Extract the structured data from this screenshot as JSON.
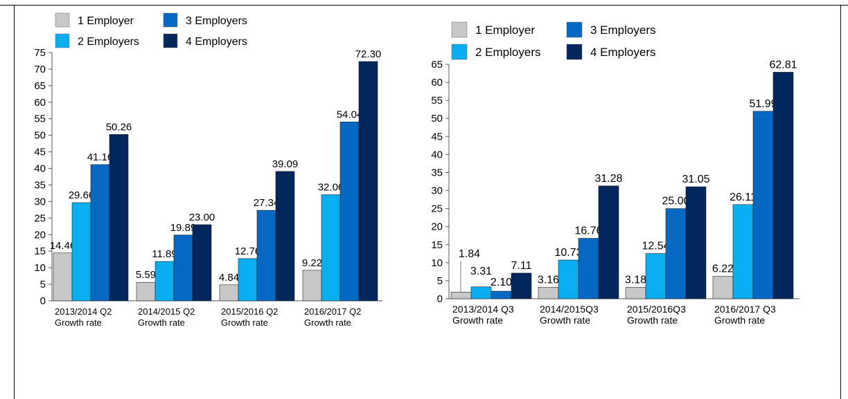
{
  "charts": {
    "colors": [
      "#c8c8c8",
      "#08aeef",
      "#0568c3",
      "#03265c"
    ],
    "legend_labels": [
      "1 Employer",
      "2 Employers",
      "3 Employers",
      "4 Employers"
    ]
  },
  "chart_data": [
    {
      "type": "bar",
      "categories": [
        [
          "2013/2014 Q2",
          "Growth rate"
        ],
        [
          "2014/2015 Q2",
          "Growth rate"
        ],
        [
          "2015/2016 Q2",
          "Growth rate"
        ],
        [
          "2016/2017 Q2",
          "Growth rate"
        ]
      ],
      "series": [
        {
          "name": "1 Employer",
          "values": [
            14.46,
            5.59,
            4.84,
            9.22
          ],
          "labels": [
            "14.46",
            "5.59",
            "4.84",
            "9.22"
          ]
        },
        {
          "name": "2 Employers",
          "values": [
            29.66,
            11.89,
            12.76,
            32.06
          ],
          "labels": [
            "29.66",
            "11.89",
            "12.76",
            "32.06"
          ]
        },
        {
          "name": "3 Employers",
          "values": [
            41.16,
            19.89,
            27.34,
            54.04
          ],
          "labels": [
            "41.16",
            "19.89",
            "27.34",
            "54.04"
          ]
        },
        {
          "name": "4 Employers",
          "values": [
            50.26,
            23.0,
            39.09,
            72.3
          ],
          "labels": [
            "50.26",
            "23.00",
            "39.09",
            "72.30"
          ]
        }
      ],
      "ylim": [
        0,
        75
      ],
      "yticks": [
        0,
        5,
        10,
        15,
        20,
        25,
        30,
        35,
        40,
        45,
        50,
        55,
        60,
        65,
        70,
        75
      ],
      "legend": "top-left"
    },
    {
      "type": "bar",
      "categories": [
        [
          "2013/2014 Q3",
          "Growth rate"
        ],
        [
          "2014/2015Q3",
          "Growth rate"
        ],
        [
          "2015/2016Q3",
          "Growth rate"
        ],
        [
          "2016/2017 Q3",
          "Growth rate"
        ]
      ],
      "series": [
        {
          "name": "1 Employer",
          "values": [
            1.84,
            3.16,
            3.18,
            6.22
          ],
          "labels": [
            "1.84",
            "3.16",
            "3.18",
            "6.22"
          ]
        },
        {
          "name": "2 Employers",
          "values": [
            3.31,
            10.73,
            12.54,
            26.11
          ],
          "labels": [
            "3.31",
            "10.73",
            "12.54",
            "26.11"
          ]
        },
        {
          "name": "3 Employers",
          "values": [
            2.1,
            16.76,
            25.0,
            51.99
          ],
          "labels": [
            "2.10",
            "16.76",
            "25.00",
            "51.99"
          ]
        },
        {
          "name": "4 Employers",
          "values": [
            7.11,
            31.28,
            31.05,
            62.81
          ],
          "labels": [
            "7.11",
            "31.28",
            "31.05",
            "62.81"
          ]
        }
      ],
      "ylim": [
        0,
        65
      ],
      "yticks": [
        0,
        5,
        10,
        15,
        20,
        25,
        30,
        35,
        40,
        45,
        50,
        55,
        60,
        65
      ],
      "legend": "top-left"
    }
  ]
}
